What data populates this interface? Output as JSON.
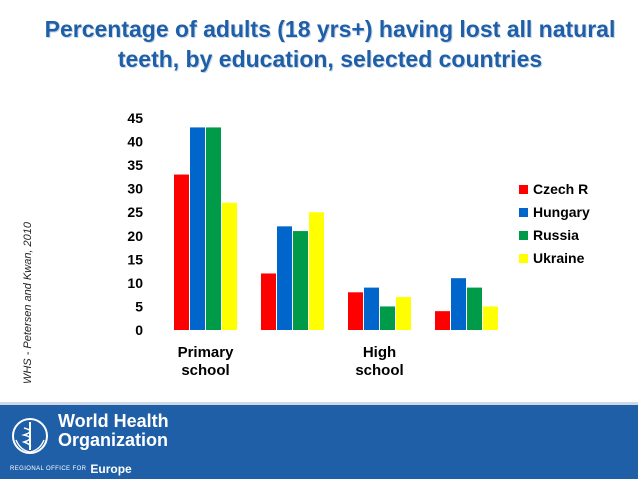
{
  "slide": {
    "title": "Percentage of adults (18 yrs+) having lost all natural teeth, by education, selected countries",
    "source_note": "WHS - Petersen and Kwan, 2010"
  },
  "footer": {
    "org_name_line1": "World Health",
    "org_name_line2": "Organization",
    "region_office": "REGIONAL OFFICE FOR",
    "region_name": "Europe",
    "background_color": "#1f5fa8"
  },
  "chart_data": {
    "type": "bar",
    "categories": [
      "Primary school",
      "",
      "High school",
      ""
    ],
    "series": [
      {
        "name": "Czech R",
        "color": "#ff0000",
        "values": [
          33,
          12,
          8,
          4
        ]
      },
      {
        "name": "Hungary",
        "color": "#0066cc",
        "values": [
          43,
          22,
          9,
          11
        ]
      },
      {
        "name": "Russia",
        "color": "#009b48",
        "values": [
          43,
          21,
          5,
          9
        ]
      },
      {
        "name": "Ukraine",
        "color": "#ffff00",
        "values": [
          27,
          25,
          7,
          5
        ]
      }
    ],
    "title": "",
    "xlabel": "",
    "ylabel": "",
    "ylim": [
      0,
      45
    ],
    "yticks": [
      0,
      5,
      10,
      15,
      20,
      25,
      30,
      35,
      40,
      45
    ],
    "grid": false,
    "legend_position": "right"
  }
}
